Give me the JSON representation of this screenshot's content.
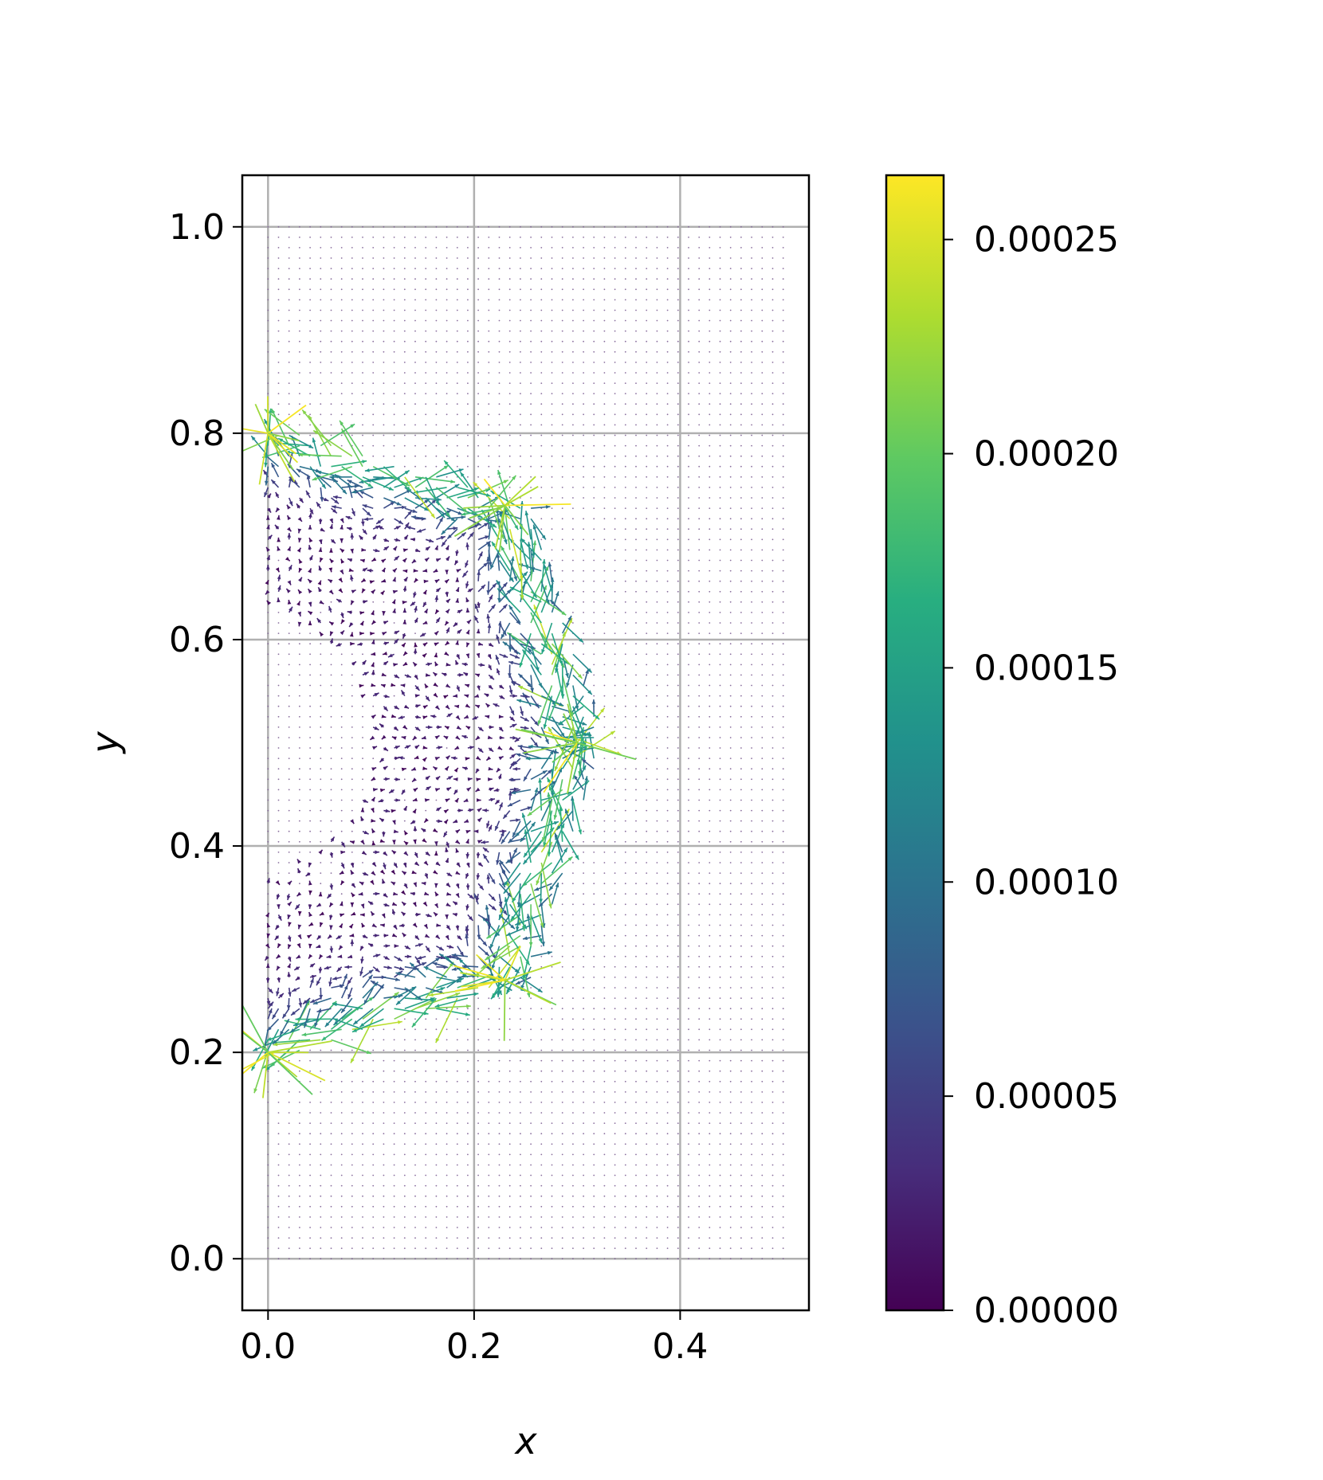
{
  "chart_data": {
    "type": "quiver",
    "title": "",
    "xlabel": "x",
    "ylabel": "y",
    "xlim": [
      -0.025,
      0.525
    ],
    "ylim": [
      -0.05,
      1.05
    ],
    "grid": true,
    "x_ticks": [
      0.0,
      0.2,
      0.4
    ],
    "x_tick_labels": [
      "0.0",
      "0.2",
      "0.4"
    ],
    "y_ticks": [
      0.0,
      0.2,
      0.4,
      0.6,
      0.8,
      1.0
    ],
    "y_tick_labels": [
      "0.0",
      "0.2",
      "0.4",
      "0.6",
      "0.8",
      "1.0"
    ],
    "field_domain": {
      "x": [
        0.0,
        0.5
      ],
      "y": [
        0.0,
        1.0
      ]
    },
    "grid_points": {
      "nx": 50,
      "ny": 100
    },
    "colormap": "viridis",
    "color_range": [
      0.0,
      0.000265
    ],
    "colorbar": {
      "ticks": [
        0.0,
        5e-05,
        0.0001,
        0.00015,
        0.0002,
        0.00025
      ],
      "tick_labels": [
        "0.00000",
        "0.00005",
        "0.00010",
        "0.00015",
        "0.00020",
        "0.00025"
      ]
    },
    "vertices": [
      {
        "x": 0.0,
        "y": 0.8
      },
      {
        "x": 0.23,
        "y": 0.73
      },
      {
        "x": 0.3,
        "y": 0.5
      },
      {
        "x": 0.23,
        "y": 0.27
      },
      {
        "x": 0.0,
        "y": 0.2
      }
    ],
    "inner_arc_points": [
      {
        "x": 0.01,
        "y": 0.7
      },
      {
        "x": 0.13,
        "y": 0.62
      },
      {
        "x": 0.16,
        "y": 0.52
      },
      {
        "x": 0.16,
        "y": 0.48
      },
      {
        "x": 0.13,
        "y": 0.38
      },
      {
        "x": 0.01,
        "y": 0.3
      }
    ]
  }
}
